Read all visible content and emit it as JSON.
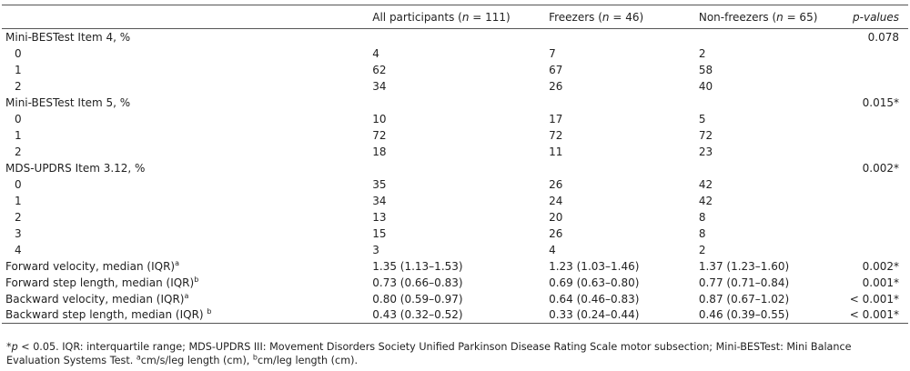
{
  "table": {
    "headers": {
      "col0": "",
      "all": "All participants (n = 111)",
      "freezers": "Freezers (n = 46)",
      "nonfreezers": "Non-freezers (n = 65)",
      "pvalues": "p-values"
    },
    "sections": [
      {
        "label": "Mini-BESTest Item 4, %",
        "p": "0.078",
        "rows": [
          {
            "cat": "0",
            "all": "4",
            "fr": "7",
            "nf": "2"
          },
          {
            "cat": "1",
            "all": "62",
            "fr": "67",
            "nf": "58"
          },
          {
            "cat": "2",
            "all": "34",
            "fr": "26",
            "nf": "40"
          }
        ]
      },
      {
        "label": "Mini-BESTest Item 5, %",
        "p": "0.015*",
        "rows": [
          {
            "cat": "0",
            "all": "10",
            "fr": "17",
            "nf": "5"
          },
          {
            "cat": "1",
            "all": "72",
            "fr": "72",
            "nf": "72"
          },
          {
            "cat": "2",
            "all": "18",
            "fr": "11",
            "nf": "23"
          }
        ]
      },
      {
        "label": "MDS-UPDRS Item 3.12, %",
        "p": "0.002*",
        "rows": [
          {
            "cat": "0",
            "all": "35",
            "fr": "26",
            "nf": "42"
          },
          {
            "cat": "1",
            "all": "34",
            "fr": "24",
            "nf": "42"
          },
          {
            "cat": "2",
            "all": "13",
            "fr": "20",
            "nf": "8"
          },
          {
            "cat": "3",
            "all": "15",
            "fr": "26",
            "nf": "8"
          },
          {
            "cat": "4",
            "all": "3",
            "fr": "4",
            "nf": "2"
          }
        ]
      }
    ],
    "measures": [
      {
        "label": "Forward velocity, median (IQR)",
        "sup": "a",
        "all": "1.35 (1.13–1.53)",
        "fr": "1.23 (1.03–1.46)",
        "nf": "1.37 (1.23–1.60)",
        "p": "0.002*"
      },
      {
        "label": "Forward step length, median (IQR)",
        "sup": "b",
        "all": "0.73 (0.66–0.83)",
        "fr": "0.69 (0.63–0.80)",
        "nf": "0.77 (0.71–0.84)",
        "p": "0.001*"
      },
      {
        "label": "Backward velocity, median (IQR)",
        "sup": "a",
        "all": "0.80 (0.59–0.97)",
        "fr": "0.64 (0.46–0.83)",
        "nf": "0.87 (0.67–1.02)",
        "p": "< 0.001*"
      },
      {
        "label": "Backward step length, median (IQR) ",
        "sup": "b",
        "all": "0.43 (0.32–0.52)",
        "fr": "0.33 (0.24–0.44)",
        "nf": "0.46 (0.39–0.55)",
        "p": "< 0.001*"
      }
    ]
  },
  "footnote": {
    "star": "*",
    "p_sym": "p",
    "line1": " < 0.05. IQR: interquartile range; MDS-UPDRS III: Movement Disorders Society Unified Parkinson Disease Rating Scale motor subsection; Mini-BESTest: Mini Balance Evaluation Systems Test. ",
    "a": "a",
    "a_text": "cm/s/leg length (cm), ",
    "b": "b",
    "b_text": "cm/leg length (cm)."
  }
}
